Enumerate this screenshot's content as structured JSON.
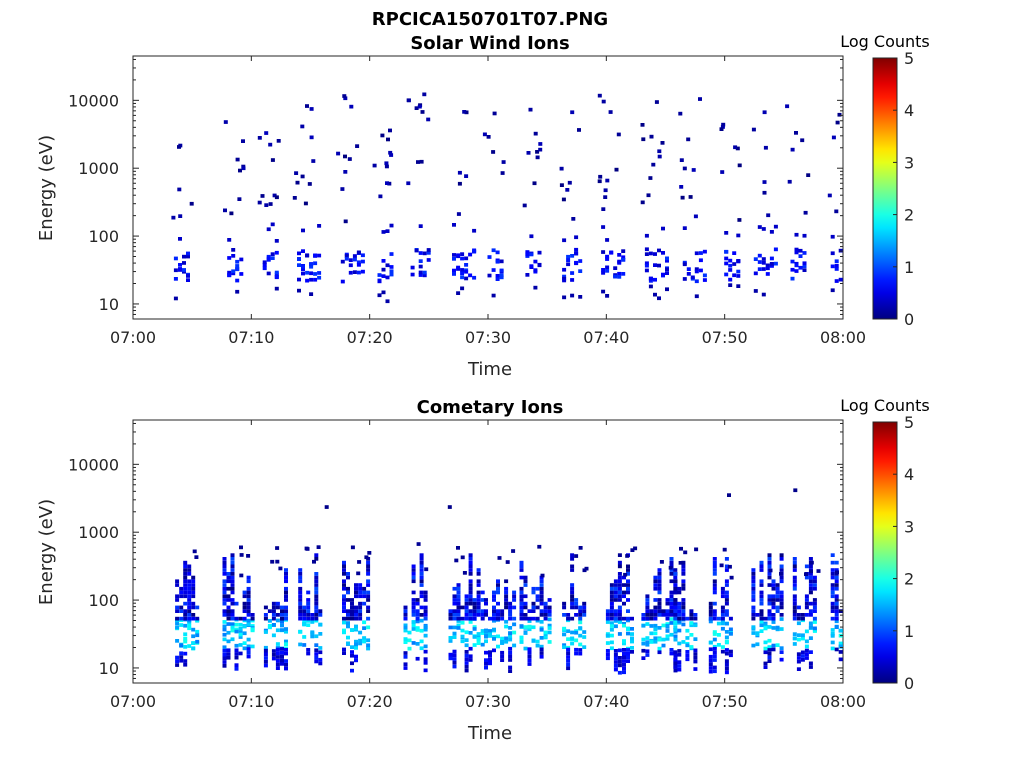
{
  "figure": {
    "title": "RPCICA150701T07.PNG"
  },
  "chart_data": [
    {
      "type": "heatmap",
      "title": "Solar Wind Ions",
      "xlabel": "Time",
      "ylabel": "Energy (eV)",
      "x_ticks": [
        "07:00",
        "07:10",
        "07:20",
        "07:30",
        "07:40",
        "07:50",
        "08:00"
      ],
      "x_range_minutes": [
        0,
        60
      ],
      "y_scale": "log",
      "y_ticks": [
        "10",
        "100",
        "1000",
        "10000"
      ],
      "y_range": [
        6,
        45000
      ],
      "colorbar": {
        "label": "Log Counts",
        "range": [
          0,
          5
        ],
        "ticks": [
          "0",
          "1",
          "2",
          "3",
          "4",
          "5"
        ],
        "colormap": "jet"
      },
      "pattern": {
        "seed": 11,
        "burst_centers_minutes": [
          3.8,
          8.3,
          11.3,
          14.2,
          17.9,
          21.0,
          23.8,
          27.3,
          30.3,
          33.5,
          36.6,
          39.9,
          43.6,
          46.8,
          50.3,
          52.8,
          55.9,
          59.3
        ],
        "core_energy_eV": [
          20,
          60
        ],
        "core_log_counts": [
          0.3,
          0.9
        ],
        "sparse_energy_eV": [
          150,
          12000
        ],
        "sparse_log_counts": [
          0.0,
          0.3
        ],
        "colors": {
          "low": "#00008f",
          "mid": "#0028ff"
        }
      }
    },
    {
      "type": "heatmap",
      "title": "Cometary Ions",
      "xlabel": "Time",
      "ylabel": "Energy (eV)",
      "x_ticks": [
        "07:00",
        "07:10",
        "07:20",
        "07:30",
        "07:40",
        "07:50",
        "08:00"
      ],
      "x_range_minutes": [
        0,
        60
      ],
      "y_scale": "log",
      "y_ticks": [
        "10",
        "100",
        "1000",
        "10000"
      ],
      "y_range": [
        6,
        45000
      ],
      "colorbar": {
        "label": "Log Counts",
        "range": [
          0,
          5
        ],
        "ticks": [
          "0",
          "1",
          "2",
          "3",
          "4",
          "5"
        ],
        "colormap": "jet"
      },
      "pattern": {
        "seed": 29,
        "burst_centers_minutes": [
          3.9,
          7.9,
          11.4,
          14.3,
          18.0,
          23.2,
          27.0,
          30.0,
          33.0,
          36.6,
          40.3,
          43.3,
          46.0,
          49.0,
          52.6,
          56.1,
          59.3
        ],
        "core_energy_eV": [
          18,
          50
        ],
        "core_log_counts": [
          1.2,
          2.0
        ],
        "plume_energy_eV": [
          50,
          500
        ],
        "plume_log_counts": [
          0.0,
          1.0
        ],
        "isolated_points": [
          {
            "t_min": 16.2,
            "energy_eV": 2200
          },
          {
            "t_min": 26.6,
            "energy_eV": 2200
          },
          {
            "t_min": 50.2,
            "energy_eV": 3300
          },
          {
            "t_min": 55.8,
            "energy_eV": 3900
          }
        ]
      }
    }
  ]
}
